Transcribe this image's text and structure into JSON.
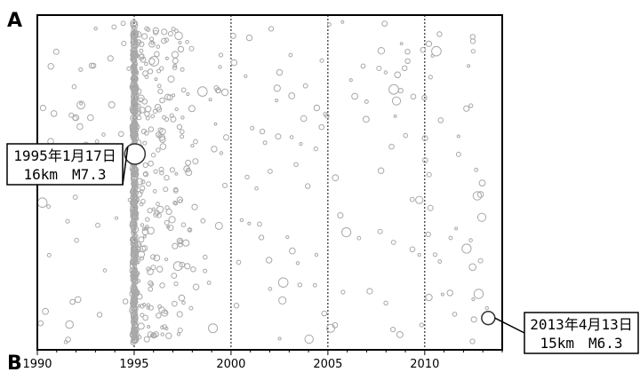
{
  "chart_data": {
    "type": "scatter",
    "xlabel": "",
    "ylabel": "",
    "xlim": [
      1990,
      2014
    ],
    "xticks": [
      "1990",
      "1995",
      "2000",
      "2005",
      "2010"
    ],
    "xtick_values": [
      1990,
      1995,
      2000,
      2005,
      2010
    ],
    "gridlines_x": [
      1995,
      2000,
      2005,
      2010
    ],
    "axis_labels": {
      "top": "A",
      "bottom": "B"
    },
    "colors": {
      "points": "#a8a8a8",
      "frame": "#000000",
      "highlight": "#333333"
    },
    "highlights": [
      {
        "date_label": "1995年1月17日",
        "detail_label": "16km　M7.3",
        "x": 1995.04,
        "y": 0.585,
        "magnitude": 7.3
      },
      {
        "date_label": "2013年4月13日",
        "detail_label": "15km　M6.3",
        "x": 2013.28,
        "y": 0.095,
        "magnitude": 6.3
      }
    ],
    "note": ""
  }
}
